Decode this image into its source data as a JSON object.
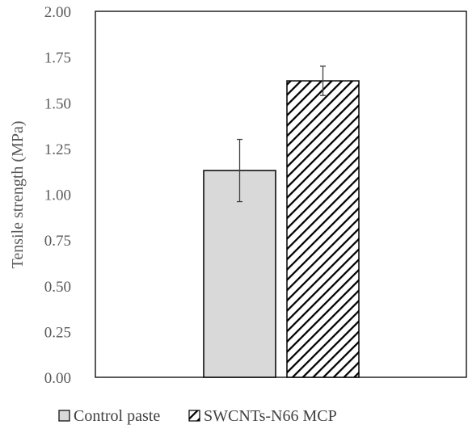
{
  "chart_data": {
    "type": "bar",
    "title": "",
    "xlabel": "",
    "ylabel": "Tensile strength (MPa)",
    "ylim": [
      0,
      2.0
    ],
    "yticks": [
      "0.00",
      "0.25",
      "0.50",
      "0.75",
      "1.00",
      "1.25",
      "1.50",
      "1.75",
      "2.00"
    ],
    "grid": false,
    "legend_position": "bottom",
    "bars": [
      {
        "name": "Control paste",
        "value": 1.13,
        "error": 0.17,
        "fill": "#d9d9d9",
        "pattern": "solid"
      },
      {
        "name": "SWCNTs-N66 MCP",
        "value": 1.62,
        "error": 0.08,
        "fill": "#ffffff",
        "pattern": "diagonal-hatch"
      }
    ],
    "colors": {
      "bar_edge": "#000000",
      "hatch": "#000000",
      "axis": "#000000",
      "error_bar": "#404040",
      "text": "#595959"
    }
  }
}
